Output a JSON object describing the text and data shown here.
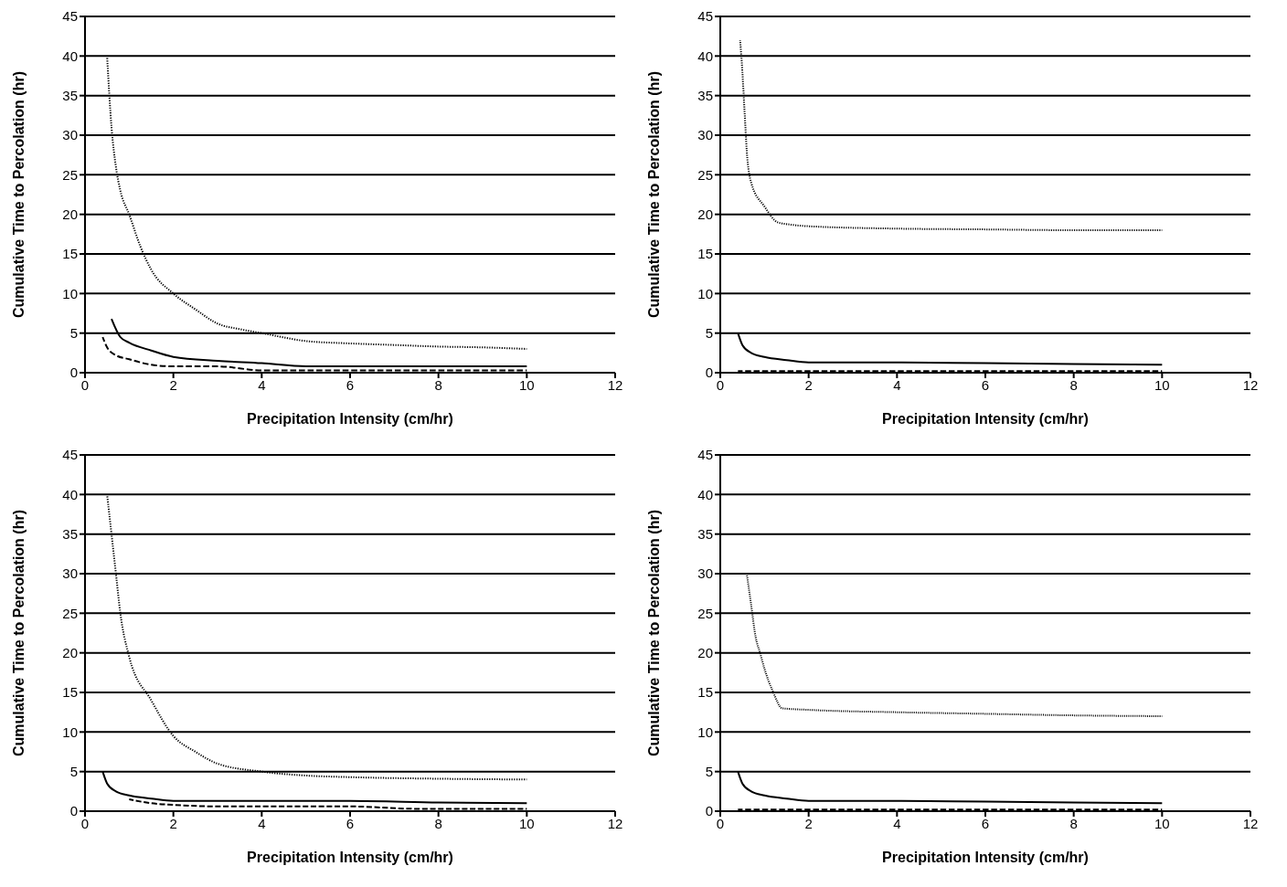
{
  "chart_data": [
    {
      "type": "line",
      "xlabel": "Precipitation Intensity (cm/hr)",
      "ylabel": "Cumulative Time to Percolation (hr)",
      "xlim": [
        0,
        12
      ],
      "xticks": [
        0,
        2,
        4,
        6,
        8,
        10,
        12
      ],
      "ylim": [
        0,
        45
      ],
      "yticks": [
        0,
        5,
        10,
        15,
        20,
        25,
        30,
        35,
        40,
        45
      ],
      "grid": "y",
      "series": [
        {
          "color": "#000000",
          "line_style": "dotted",
          "x": [
            0.5,
            0.6,
            0.7,
            0.8,
            1,
            1.25,
            1.5,
            2,
            2.5,
            3,
            3.5,
            4,
            5,
            6,
            7,
            8,
            9,
            10
          ],
          "values": [
            40,
            31,
            26,
            23,
            20,
            16,
            13,
            10,
            8,
            6.2,
            5.5,
            5,
            4,
            3.7,
            3.5,
            3.3,
            3.2,
            3
          ]
        },
        {
          "color": "#000000",
          "line_style": "solid",
          "x": [
            0.6,
            0.8,
            1,
            1.5,
            2,
            3,
            4,
            5,
            6,
            8,
            10
          ],
          "values": [
            6.8,
            4.5,
            3.8,
            2.8,
            2,
            1.5,
            1.2,
            0.8,
            0.8,
            0.8,
            0.8
          ]
        },
        {
          "color": "#000000",
          "line_style": "dashed",
          "x": [
            0.4,
            0.5,
            0.7,
            1,
            1.5,
            2,
            3,
            4,
            6,
            8,
            10
          ],
          "values": [
            4.5,
            3.2,
            2.2,
            1.7,
            1,
            0.8,
            0.8,
            0.3,
            0.3,
            0.3,
            0.3
          ]
        }
      ]
    },
    {
      "type": "line",
      "xlabel": "Precipitation Intensity (cm/hr)",
      "ylabel": "Cumulative Time to Percolation (hr)",
      "xlim": [
        0,
        12
      ],
      "xticks": [
        0,
        2,
        4,
        6,
        8,
        10,
        12
      ],
      "ylim": [
        0,
        45
      ],
      "yticks": [
        0,
        5,
        10,
        15,
        20,
        25,
        30,
        35,
        40,
        45
      ],
      "grid": "y",
      "series": [
        {
          "color": "#000000",
          "line_style": "dotted",
          "x": [
            0.45,
            0.5,
            0.55,
            0.6,
            0.7,
            1,
            1.3,
            1.6,
            2,
            4,
            6,
            8,
            10
          ],
          "values": [
            42,
            38,
            33,
            28,
            24,
            21,
            19,
            18.7,
            18.5,
            18.2,
            18.1,
            18,
            18
          ]
        },
        {
          "color": "#000000",
          "line_style": "solid",
          "x": [
            0.4,
            0.5,
            0.7,
            1,
            1.5,
            2,
            4,
            6,
            8,
            10
          ],
          "values": [
            5,
            3.5,
            2.5,
            2,
            1.6,
            1.3,
            1.3,
            1.2,
            1.1,
            1
          ]
        },
        {
          "color": "#000000",
          "line_style": "dashed",
          "x": [
            0.4,
            2,
            4,
            6,
            8,
            10
          ],
          "values": [
            0.2,
            0.2,
            0.2,
            0.2,
            0.2,
            0.2
          ]
        }
      ]
    },
    {
      "type": "line",
      "xlabel": "Precipitation Intensity (cm/hr)",
      "ylabel": "Cumulative Time to Percolation (hr)",
      "xlim": [
        0,
        12
      ],
      "xticks": [
        0,
        2,
        4,
        6,
        8,
        10,
        12
      ],
      "ylim": [
        0,
        45
      ],
      "yticks": [
        0,
        5,
        10,
        15,
        20,
        25,
        30,
        35,
        40,
        45
      ],
      "grid": "y",
      "series": [
        {
          "color": "#000000",
          "line_style": "dotted",
          "x": [
            0.5,
            0.6,
            0.7,
            0.8,
            1,
            1.5,
            2,
            2.5,
            3,
            4,
            5,
            6,
            8,
            10
          ],
          "values": [
            40,
            35,
            30,
            25,
            19.5,
            14,
            9.5,
            7.5,
            6,
            5,
            4.5,
            4.3,
            4.1,
            4
          ]
        },
        {
          "color": "#000000",
          "line_style": "solid",
          "x": [
            0.4,
            0.5,
            0.7,
            1,
            1.5,
            2,
            4,
            6,
            8,
            10
          ],
          "values": [
            5,
            3.5,
            2.5,
            2,
            1.6,
            1.3,
            1.3,
            1.3,
            1.1,
            1
          ]
        },
        {
          "color": "#000000",
          "line_style": "dashed",
          "x": [
            1,
            1.5,
            2,
            3,
            6,
            7.5,
            10
          ],
          "values": [
            1.5,
            1,
            0.8,
            0.6,
            0.6,
            0.3,
            0.3
          ]
        }
      ]
    },
    {
      "type": "line",
      "xlabel": "Precipitation Intensity (cm/hr)",
      "ylabel": "Cumulative Time to Percolation (hr)",
      "xlim": [
        0,
        12
      ],
      "xticks": [
        0,
        2,
        4,
        6,
        8,
        10,
        12
      ],
      "ylim": [
        0,
        45
      ],
      "yticks": [
        0,
        5,
        10,
        15,
        20,
        25,
        30,
        35,
        40,
        45
      ],
      "grid": "y",
      "series": [
        {
          "color": "#000000",
          "line_style": "dotted",
          "x": [
            0.6,
            0.7,
            0.8,
            0.9,
            1,
            1.2,
            1.4,
            2,
            4,
            6,
            8,
            10
          ],
          "values": [
            30,
            26,
            22,
            20,
            18,
            15,
            13,
            12.8,
            12.5,
            12.3,
            12.1,
            12
          ]
        },
        {
          "color": "#000000",
          "line_style": "solid",
          "x": [
            0.4,
            0.5,
            0.7,
            1,
            1.5,
            2,
            4,
            6,
            8,
            10
          ],
          "values": [
            5,
            3.5,
            2.5,
            2,
            1.6,
            1.3,
            1.3,
            1.2,
            1.1,
            1
          ]
        },
        {
          "color": "#000000",
          "line_style": "dashed",
          "x": [
            0.4,
            2,
            4,
            6,
            8,
            10
          ],
          "values": [
            0.2,
            0.2,
            0.2,
            0.2,
            0.2,
            0.2
          ]
        }
      ]
    }
  ]
}
